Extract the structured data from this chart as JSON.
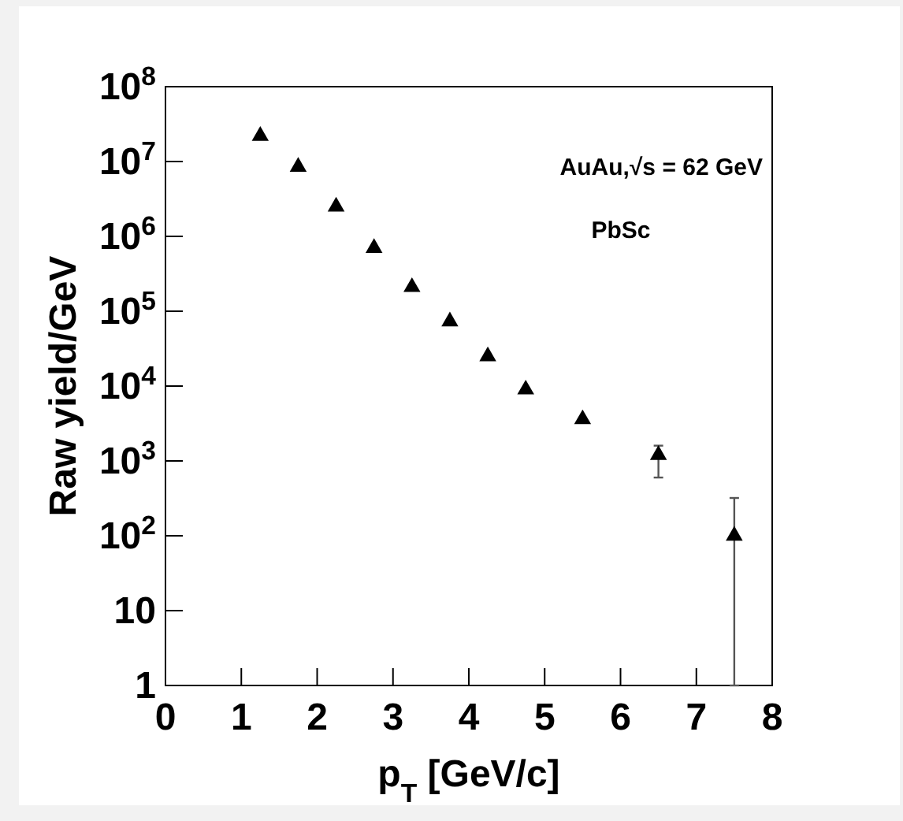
{
  "chart_data": {
    "type": "scatter",
    "xlabel": "p$_{T}$ [GeV/c]",
    "ylabel": "Raw yield/GeV",
    "annotations": [
      "AuAu,√s = 62 GeV",
      "PbSc"
    ],
    "x": [
      1.25,
      1.75,
      2.25,
      2.75,
      3.25,
      3.75,
      4.25,
      4.75,
      5.5,
      6.5,
      7.5
    ],
    "series": [
      {
        "color": "#000000",
        "values": [
          22000000,
          8500000,
          2500000,
          700000,
          210000,
          73000,
          25000,
          9000,
          3600,
          1200,
          100
        ],
        "errors": [
          null,
          null,
          null,
          null,
          null,
          null,
          null,
          null,
          null,
          [
            600,
            1600
          ],
          [
            1,
            320
          ]
        ]
      }
    ],
    "log": "y",
    "marker": "triangle",
    "grid": false,
    "xlim": [
      0,
      8
    ],
    "xticks": [
      0,
      1,
      2,
      3,
      4,
      5,
      6,
      7,
      8
    ],
    "ylim": [
      1,
      100000000
    ],
    "yticks": [
      1,
      10,
      {
        "value": 100,
        "label": "10$^{2}$"
      },
      {
        "value": 1000,
        "label": "10$^{3}$"
      },
      {
        "value": 10000,
        "label": "10$^{4}$"
      },
      {
        "value": 100000,
        "label": "10$^{5}$"
      },
      {
        "value": 1000000,
        "label": "10$^{6}$"
      },
      {
        "value": 10000000,
        "label": "10$^{7}$"
      },
      {
        "value": 100000000,
        "label": "10$^{8}$"
      }
    ]
  }
}
